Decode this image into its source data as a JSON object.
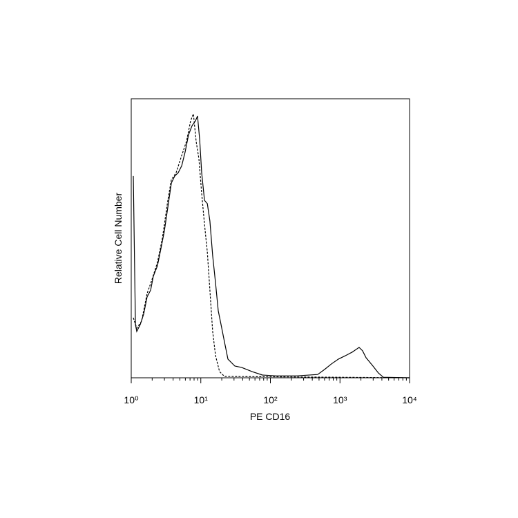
{
  "chart_data": {
    "type": "line",
    "xlabel": "PE CD16",
    "ylabel": "Relative Cell Number",
    "xscale": "log",
    "xlim": [
      1,
      10000
    ],
    "ylim": [
      0,
      100
    ],
    "xticks": [
      {
        "value": 1,
        "label": "10⁰"
      },
      {
        "value": 10,
        "label": "10¹"
      },
      {
        "value": 100,
        "label": "10²"
      },
      {
        "value": 1000,
        "label": "10³"
      },
      {
        "value": 10000,
        "label": "10⁴"
      }
    ],
    "xticks_minor": [
      2,
      3,
      4,
      5,
      6,
      7,
      8,
      9,
      20,
      30,
      40,
      50,
      60,
      70,
      80,
      90,
      200,
      300,
      400,
      500,
      600,
      700,
      800,
      900,
      2000,
      3000,
      4000,
      5000,
      6000,
      7000,
      8000,
      9000
    ],
    "series": [
      {
        "color": "#000000",
        "dash": "solid",
        "x": [
          1.07,
          1.15,
          1.2,
          1.35,
          1.51,
          1.69,
          1.9,
          2.08,
          2.38,
          2.67,
          2.99,
          3.36,
          3.77,
          4.22,
          4.73,
          5.31,
          5.94,
          6.67,
          7.47,
          8.38,
          8.97,
          9.62,
          10.3,
          11.3,
          12.4,
          13.5,
          14.8,
          16.3,
          17.8,
          19.5,
          21.4,
          24.5,
          30.8,
          38.7,
          54.6,
          76.9,
          121,
          241,
          479,
          601,
          755,
          950,
          1190,
          1500,
          1880,
          2110,
          2370,
          2980,
          3570,
          4200,
          10000
        ],
        "values": [
          72.3,
          19.1,
          16.6,
          19.1,
          22.8,
          29.0,
          31.4,
          36.4,
          40.1,
          46.3,
          52.5,
          61.1,
          69.8,
          72.3,
          73.5,
          76.0,
          80.9,
          87.1,
          90.3,
          92.1,
          93.8,
          85.4,
          73.5,
          63.6,
          62.4,
          56.2,
          43.8,
          33.9,
          24.0,
          19.1,
          14.1,
          6.7,
          4.2,
          3.7,
          2.2,
          1.0,
          0.7,
          0.7,
          1.2,
          3.0,
          5.0,
          6.7,
          7.9,
          9.2,
          10.9,
          9.7,
          7.2,
          4.2,
          1.7,
          0.2,
          0
        ]
      },
      {
        "color": "#000000",
        "dash": "dashed",
        "x": [
          1.07,
          1.2,
          1.41,
          1.69,
          1.98,
          2.38,
          2.8,
          3.36,
          3.77,
          4.42,
          5.31,
          6.22,
          7.14,
          7.82,
          8.57,
          9.4,
          10.3,
          11.3,
          12.4,
          13.5,
          14.8,
          16.3,
          18.6,
          21.9,
          10000
        ],
        "values": [
          21.5,
          17.8,
          20.3,
          30.2,
          35.1,
          41.3,
          50.0,
          63.6,
          71.0,
          73.5,
          79.7,
          84.7,
          92.1,
          94.6,
          84.7,
          78.5,
          66.1,
          55.0,
          45.0,
          31.4,
          16.6,
          7.9,
          2.2,
          0.5,
          0
        ]
      }
    ]
  }
}
